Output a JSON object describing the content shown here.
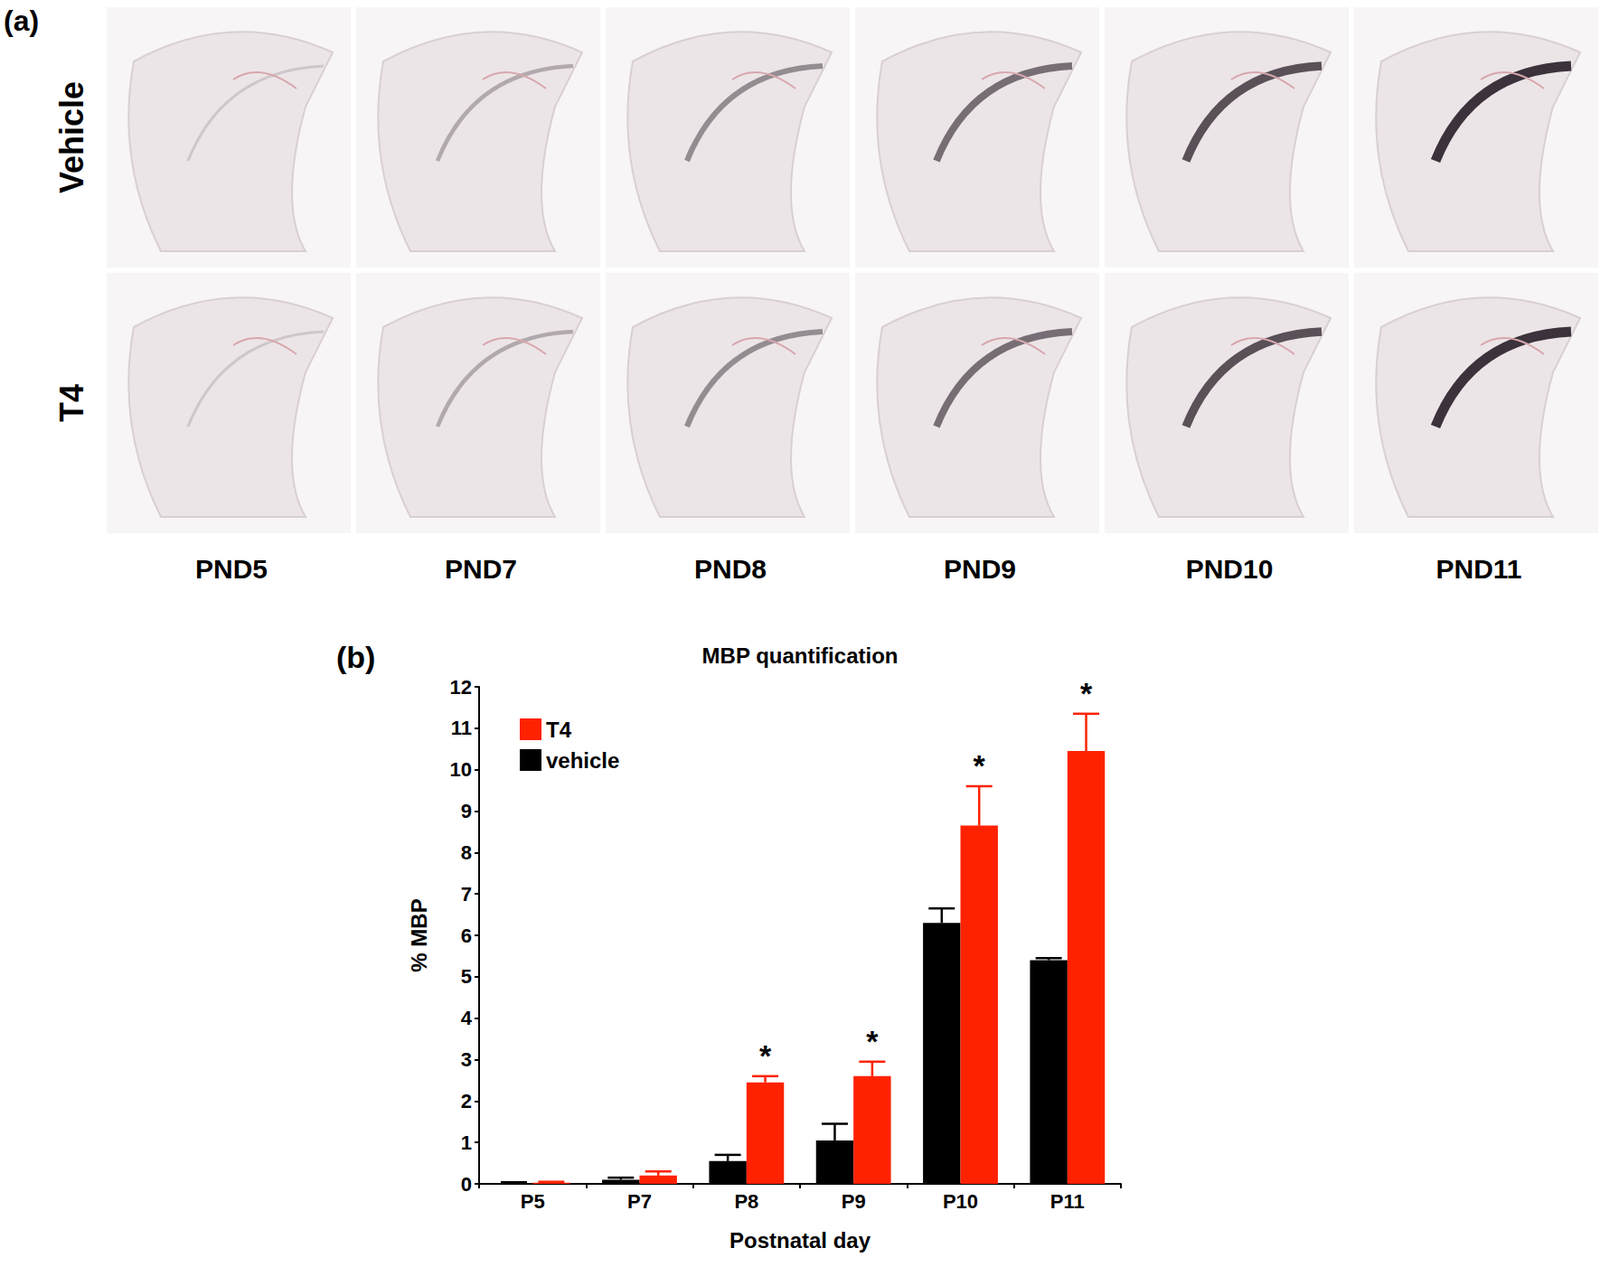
{
  "panel_a": {
    "label": "(a)",
    "row_labels": [
      "Vehicle",
      "T4"
    ],
    "column_labels": [
      "PND5",
      "PND7",
      "PND8",
      "PND9",
      "PND10",
      "PND11"
    ]
  },
  "chart_data": {
    "panel_label": "(b)",
    "type": "bar",
    "title": "MBP quantification",
    "x_label": "Postnatal day",
    "y_label": "% MBP",
    "categories": [
      "P5",
      "P7",
      "P8",
      "P9",
      "P10",
      "P11"
    ],
    "series": [
      {
        "name": "T4",
        "color": "#ff2200",
        "values": [
          0.03,
          0.2,
          2.45,
          2.6,
          8.65,
          10.45
        ],
        "errors": [
          0.02,
          0.1,
          0.15,
          0.35,
          0.95,
          0.9
        ],
        "annotations": [
          null,
          null,
          "*",
          "*",
          "*",
          "*"
        ]
      },
      {
        "name": "vehicle",
        "color": "#000000",
        "values": [
          0.02,
          0.1,
          0.55,
          1.05,
          6.3,
          5.4
        ],
        "errors": [
          0.02,
          0.05,
          0.15,
          0.4,
          0.35,
          0.05
        ],
        "annotations": [
          null,
          null,
          null,
          null,
          null,
          null
        ]
      }
    ],
    "ylim": [
      0,
      12
    ],
    "yticks": [
      0,
      1,
      2,
      3,
      4,
      5,
      6,
      7,
      8,
      9,
      10,
      11,
      12
    ],
    "grid": false,
    "legend": "upper left"
  }
}
